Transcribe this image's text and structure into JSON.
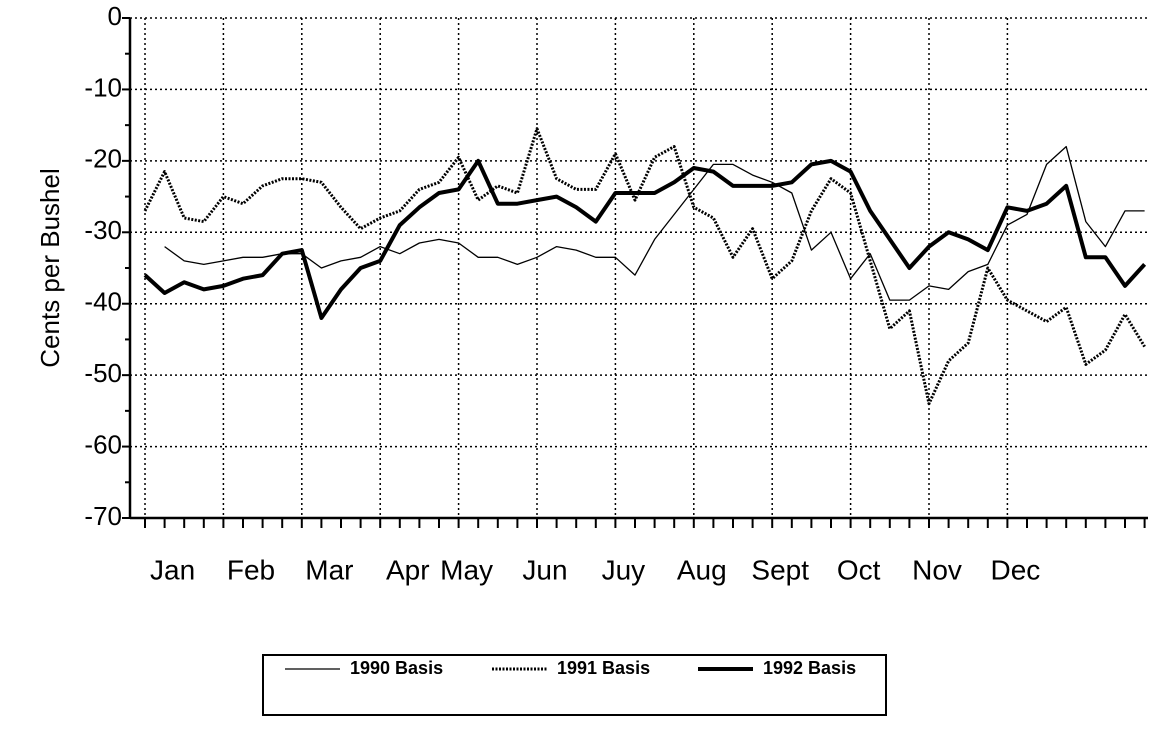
{
  "chart_data": {
    "type": "line",
    "y_label": "Cents per Bushel",
    "categories": [
      null,
      "Jan",
      null,
      null,
      null,
      "Feb",
      null,
      null,
      null,
      "Mar",
      null,
      null,
      null,
      "Apr",
      null,
      null,
      "May",
      null,
      null,
      null,
      "Jun",
      null,
      null,
      null,
      "Juy",
      null,
      null,
      null,
      "Aug",
      null,
      null,
      null,
      "Sept",
      null,
      null,
      null,
      "Oct",
      null,
      null,
      null,
      "Nov",
      null,
      null,
      null,
      "Dec",
      null,
      null,
      null,
      null,
      null,
      null,
      null
    ],
    "series": [
      {
        "name": "1990 Basis",
        "color": "#000000",
        "style": "thin",
        "values": [
          null,
          -32,
          -34,
          -34.5,
          -34,
          -33.5,
          -33.5,
          -33,
          -33,
          -35,
          -34,
          -33.5,
          -32,
          -33,
          -31.5,
          -31,
          -31.5,
          -33.5,
          -33.5,
          -34.5,
          -33.5,
          -32,
          -32.5,
          -33.5,
          -33.5,
          -36,
          -31,
          -27.5,
          -24,
          -20.5,
          -20.5,
          -22,
          -23,
          -24.5,
          -32.5,
          -30,
          -36.5,
          -33,
          -39.5,
          -39.5,
          -37.5,
          -38,
          -35.5,
          -34.5,
          -29,
          -27.5,
          -20.5,
          -18,
          -28.5,
          -32,
          -27,
          -27
        ]
      },
      {
        "name": "1991 Basis",
        "color": "#000000",
        "style": "dotted",
        "values": [
          -27,
          -21.5,
          -28,
          -28.5,
          -25,
          -26,
          -23.5,
          -22.5,
          -22.5,
          -23,
          -26.5,
          -29.5,
          -28,
          -27,
          -24,
          -23,
          -19.5,
          -25.5,
          -23.5,
          -24.5,
          -15.5,
          -22.5,
          -24,
          -24,
          -19,
          -25.5,
          -19.5,
          -18,
          -26.5,
          -28,
          -33.5,
          -29.5,
          -36.5,
          -34,
          -27,
          -22.5,
          -24.5,
          -34,
          -43.5,
          -41,
          -54,
          -48,
          -45.5,
          -35,
          -39.5,
          -41,
          -42.5,
          -40.5,
          -48.5,
          -46.5,
          -41.5,
          -46
        ]
      },
      {
        "name": "1992 Basis",
        "color": "#000000",
        "style": "thick",
        "values": [
          -36,
          -38.5,
          -37,
          -38,
          -37.5,
          -36.5,
          -36,
          -33,
          -32.5,
          -42,
          -38,
          -35,
          -34,
          -29,
          -26.5,
          -24.5,
          -24,
          -20,
          -26,
          -26,
          -25.5,
          -25,
          -26.5,
          -28.5,
          -24.5,
          -24.5,
          -24.5,
          -23,
          -21,
          -21.5,
          -23.5,
          -23.5,
          -23.5,
          -23,
          -20.5,
          -20,
          -21.5,
          -27,
          -31,
          -35,
          -32,
          -30,
          -31,
          -32.5,
          -26.5,
          -27,
          -26,
          -23.5,
          -33.5,
          -33.5,
          -37.5,
          -34.5
        ]
      }
    ],
    "ylim": [
      -70,
      0
    ],
    "yticks": [
      0,
      -10,
      -20,
      -30,
      -40,
      -50,
      -60,
      -70
    ],
    "grid": true
  }
}
